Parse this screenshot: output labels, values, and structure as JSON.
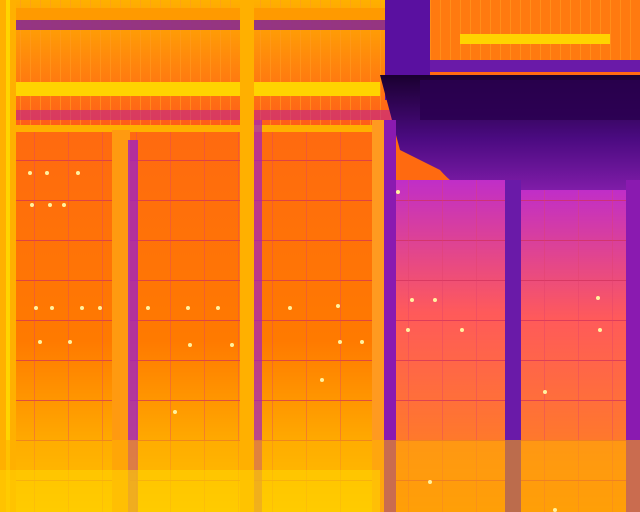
{
  "image": {
    "kind": "thermal-infrared-photo",
    "subject": "",
    "palette": {
      "cold": "#1a0030",
      "cool": "#6a1aa8",
      "mid": "#b02ec0",
      "warm": "#ff5a1a",
      "hot": "#ff7a00",
      "hottest": "#ffd400"
    }
  }
}
